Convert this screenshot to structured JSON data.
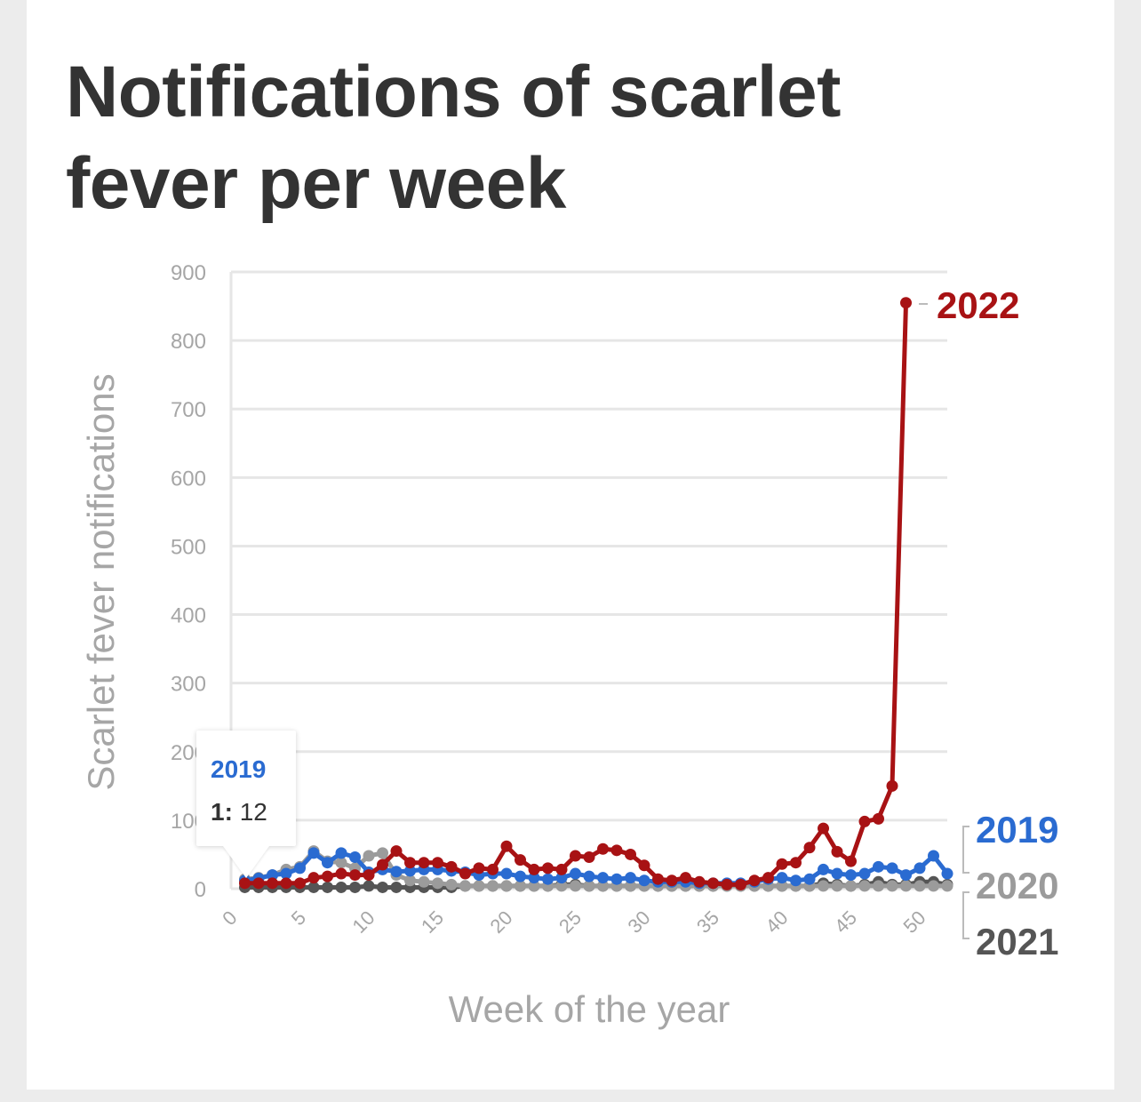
{
  "title": "Notifications of scarlet fever per week",
  "chart_data": {
    "type": "line",
    "xlabel": "Week of the year",
    "ylabel": "Scarlet fever notifications",
    "xlim": [
      0,
      52
    ],
    "ylim": [
      0,
      900
    ],
    "x_ticks": [
      "0",
      "5",
      "10",
      "15",
      "20",
      "25",
      "30",
      "35",
      "40",
      "45",
      "50"
    ],
    "y_ticks": [
      "0",
      "100",
      "200",
      "300",
      "400",
      "500",
      "600",
      "700",
      "800",
      "900"
    ],
    "grid": "horizontal",
    "series": [
      {
        "name": "2019",
        "color": "#2a6bd1",
        "x": [
          1,
          2,
          3,
          4,
          5,
          6,
          7,
          8,
          9,
          10,
          11,
          12,
          13,
          14,
          15,
          16,
          17,
          18,
          19,
          20,
          21,
          22,
          23,
          24,
          25,
          26,
          27,
          28,
          29,
          30,
          31,
          32,
          33,
          34,
          35,
          36,
          37,
          38,
          39,
          40,
          41,
          42,
          43,
          44,
          45,
          46,
          47,
          48,
          49,
          50,
          51,
          52
        ],
        "values": [
          12,
          15,
          20,
          22,
          30,
          52,
          38,
          52,
          46,
          24,
          28,
          25,
          26,
          28,
          28,
          26,
          24,
          20,
          22,
          22,
          18,
          16,
          14,
          16,
          22,
          18,
          16,
          14,
          16,
          12,
          10,
          10,
          10,
          8,
          8,
          8,
          8,
          10,
          14,
          16,
          12,
          14,
          28,
          22,
          20,
          22,
          32,
          30,
          20,
          30,
          48,
          22
        ]
      },
      {
        "name": "2020",
        "color": "#9b9b9b",
        "x": [
          1,
          2,
          3,
          4,
          5,
          6,
          7,
          8,
          9,
          10,
          11,
          12,
          13,
          14,
          15,
          16,
          17,
          18,
          19,
          20,
          21,
          22,
          23,
          24,
          25,
          26,
          27,
          28,
          29,
          30,
          31,
          32,
          33,
          34,
          35,
          36,
          37,
          38,
          39,
          40,
          41,
          42,
          43,
          44,
          45,
          46,
          47,
          48,
          49,
          50,
          51,
          52
        ],
        "values": [
          14,
          16,
          20,
          28,
          32,
          55,
          40,
          38,
          30,
          48,
          52,
          20,
          12,
          10,
          8,
          6,
          4,
          4,
          4,
          4,
          4,
          4,
          4,
          4,
          4,
          4,
          4,
          4,
          4,
          4,
          4,
          4,
          4,
          4,
          4,
          4,
          4,
          4,
          4,
          4,
          4,
          4,
          4,
          4,
          4,
          4,
          4,
          4,
          4,
          4,
          4,
          4
        ]
      },
      {
        "name": "2021",
        "color": "#555555",
        "x": [
          1,
          2,
          3,
          4,
          5,
          6,
          7,
          8,
          9,
          10,
          11,
          12,
          13,
          14,
          15,
          16,
          17,
          18,
          19,
          20,
          21,
          22,
          23,
          24,
          25,
          26,
          27,
          28,
          29,
          30,
          31,
          32,
          33,
          34,
          35,
          36,
          37,
          38,
          39,
          40,
          41,
          42,
          43,
          44,
          45,
          46,
          47,
          48,
          49,
          50,
          51,
          52
        ],
        "values": [
          2,
          2,
          2,
          2,
          2,
          2,
          2,
          2,
          2,
          4,
          2,
          2,
          2,
          2,
          2,
          2,
          4,
          4,
          4,
          4,
          4,
          4,
          4,
          6,
          6,
          4,
          4,
          4,
          4,
          4,
          4,
          4,
          4,
          4,
          4,
          4,
          4,
          4,
          4,
          4,
          4,
          4,
          8,
          6,
          4,
          6,
          10,
          6,
          6,
          10,
          10,
          6
        ]
      },
      {
        "name": "2022",
        "color": "#a81214",
        "x": [
          1,
          2,
          3,
          4,
          5,
          6,
          7,
          8,
          9,
          10,
          11,
          12,
          13,
          14,
          15,
          16,
          17,
          18,
          19,
          20,
          21,
          22,
          23,
          24,
          25,
          26,
          27,
          28,
          29,
          30,
          31,
          32,
          33,
          34,
          35,
          36,
          37,
          38,
          39,
          40,
          41,
          42,
          43,
          44,
          45,
          46,
          47,
          48,
          49
        ],
        "values": [
          8,
          8,
          8,
          8,
          8,
          16,
          18,
          22,
          20,
          20,
          35,
          55,
          38,
          38,
          38,
          32,
          22,
          30,
          28,
          62,
          42,
          28,
          30,
          28,
          48,
          46,
          58,
          56,
          50,
          34,
          14,
          12,
          16,
          10,
          8,
          6,
          6,
          12,
          16,
          36,
          38,
          60,
          88,
          54,
          40,
          98,
          102,
          150,
          855
        ]
      }
    ],
    "tooltip": {
      "series": "2019",
      "x_label": "1:",
      "value": "12"
    }
  }
}
